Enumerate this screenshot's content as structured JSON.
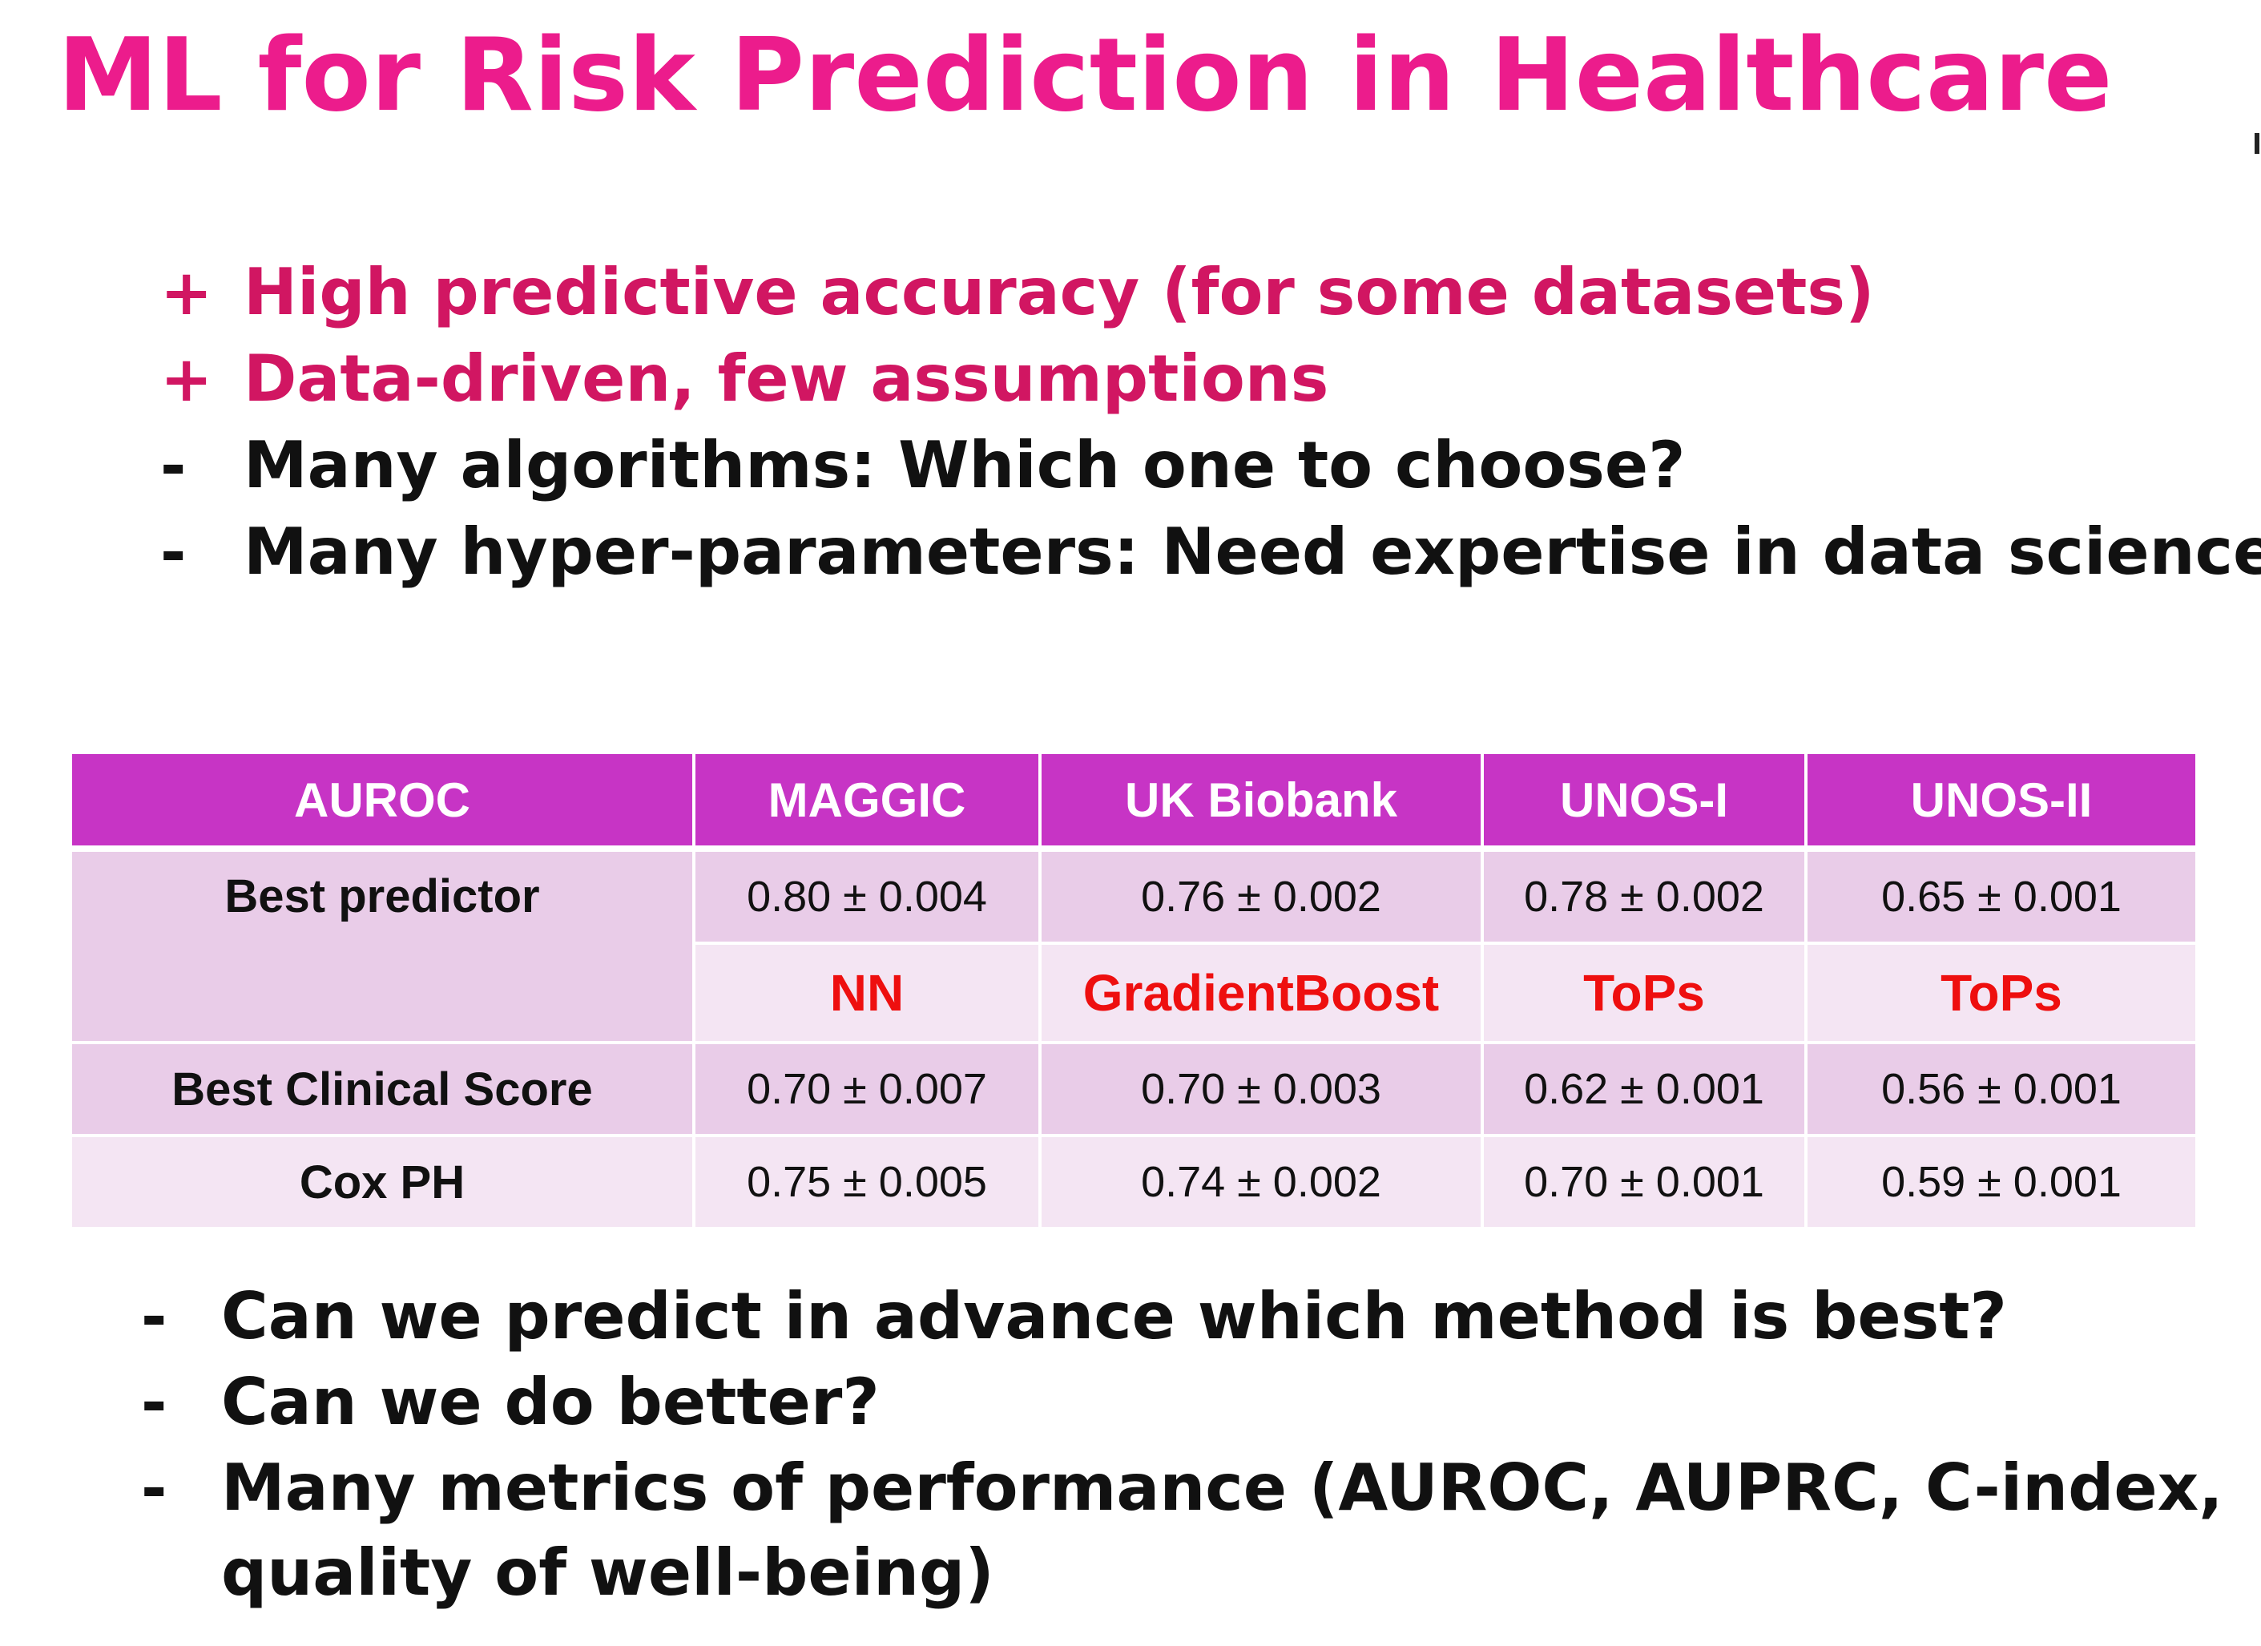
{
  "title": "ML for Risk Prediction in Healthcare",
  "pros_cons": [
    {
      "marker": "+",
      "text": "High predictive accuracy (for some datasets)"
    },
    {
      "marker": "+",
      "text": "Data-driven, few assumptions"
    },
    {
      "marker": "-",
      "text": "Many algorithms: Which one to choose?"
    },
    {
      "marker": "-",
      "text": "Many hyper-parameters: Need expertise in data science"
    }
  ],
  "table": {
    "headers": [
      "AUROC",
      "MAGGIC",
      "UK Biobank",
      "UNOS-I",
      "UNOS-II"
    ],
    "best_predictor": {
      "label": "Best predictor",
      "values": [
        "0.80 ± 0.004",
        "0.76 ± 0.002",
        "0.78 ± 0.002",
        "0.65 ± 0.001"
      ],
      "methods": [
        "NN",
        "GradientBoost",
        "ToPs",
        "ToPs"
      ]
    },
    "best_clinical_score": {
      "label": "Best Clinical Score",
      "values": [
        "0.70 ± 0.007",
        "0.70 ± 0.003",
        "0.62 ± 0.001",
        "0.56 ± 0.001"
      ]
    },
    "cox_ph": {
      "label": "Cox PH",
      "values": [
        "0.75 ± 0.005",
        "0.74 ± 0.002",
        "0.70 ± 0.001",
        "0.59 ± 0.001"
      ]
    }
  },
  "questions": [
    {
      "marker": "-",
      "text": "Can we predict in advance which method is best?"
    },
    {
      "marker": "-",
      "text": "Can we do better?"
    },
    {
      "marker": "-",
      "text": "Many metrics of performance (AUROC, AUPRC, C-index, quality of well-being)"
    }
  ],
  "colors": {
    "title": "#ec1c8c",
    "pro_text": "#d11662",
    "header_bg": "#c734c5",
    "row_dark": "#e9cce8",
    "row_light": "#f4e5f3",
    "method_text": "#ee0f0f"
  }
}
